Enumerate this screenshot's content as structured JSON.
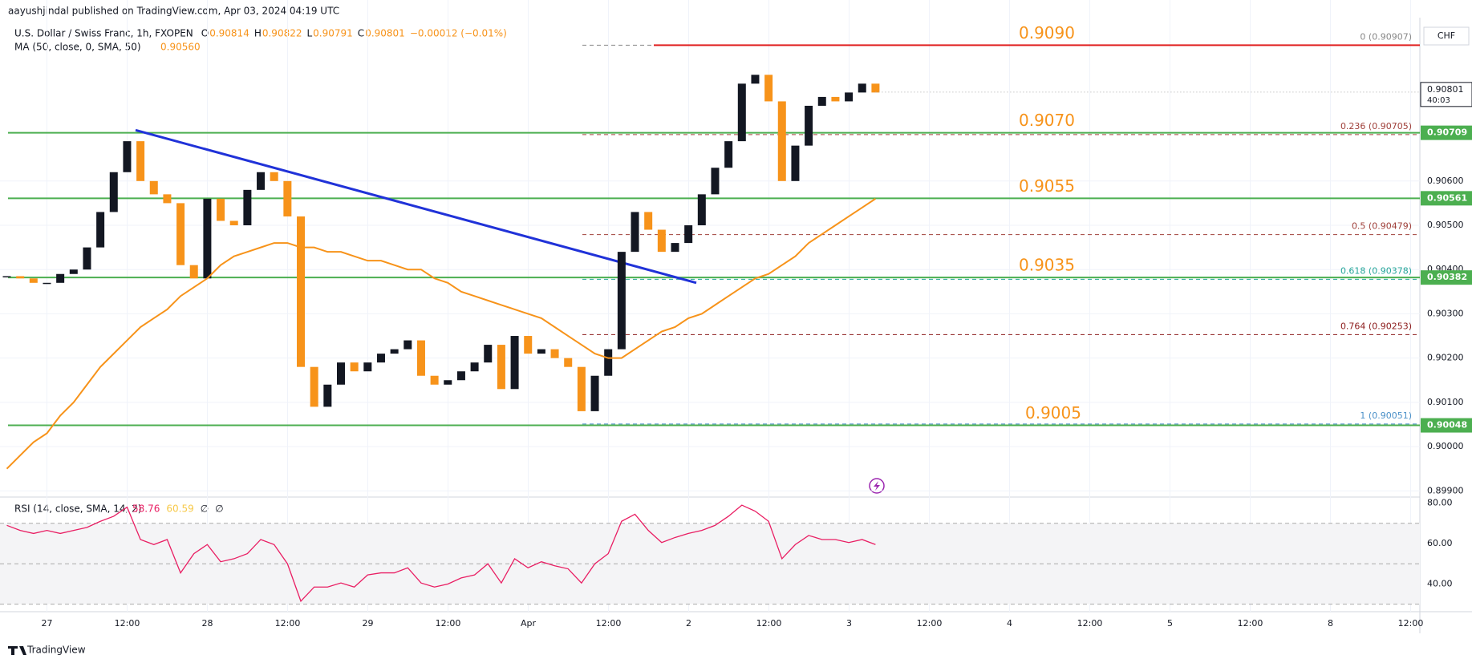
{
  "header": {
    "publisher": "aayushjindal published on TradingView.com, Apr 03, 2024 04:19 UTC",
    "symbol": "U.S. Dollar / Swiss Franc, 1h, FXOPEN",
    "ohlc": [
      {
        "label": "O",
        "value": "0.90814"
      },
      {
        "label": "H",
        "value": "0.90822"
      },
      {
        "label": "L",
        "value": "0.90791"
      },
      {
        "label": "C",
        "value": "0.90801"
      }
    ],
    "change": "−0.00012 (−0.01%)",
    "ma_label": "MA (50, close, 0, SMA, 50)",
    "ma_value": "0.90560",
    "rsi_label": "RSI (14, close, SMA, 14, 2)",
    "rsi_values": [
      "58.76",
      "60.59",
      "∅",
      "∅"
    ],
    "currency": "CHF",
    "logo": "TradingView"
  },
  "chart_data": {
    "type": "candlestick",
    "ylim": [
      0.89886,
      0.91009
    ],
    "yticks": [
      {
        "value": 0.906,
        "label": "0.90600"
      },
      {
        "value": 0.905,
        "label": "0.90500"
      },
      {
        "value": 0.904,
        "label": "0.90400"
      },
      {
        "value": 0.903,
        "label": "0.90300"
      },
      {
        "value": 0.902,
        "label": "0.90200"
      },
      {
        "value": 0.901,
        "label": "0.90100"
      },
      {
        "value": 0.9,
        "label": "0.90000"
      },
      {
        "value": 0.899,
        "label": "0.89900"
      }
    ],
    "time_axis": [
      "27",
      "12:00",
      "28",
      "12:00",
      "29",
      "12:00",
      "Apr",
      "12:00",
      "2",
      "12:00",
      "3",
      "12:00",
      "4",
      "12:00",
      "5",
      "12:00",
      "8",
      "12:00"
    ],
    "closes": [
      0.90385,
      0.9038,
      0.9037,
      0.9037,
      0.9039,
      0.904,
      0.9045,
      0.9053,
      0.9062,
      0.9069,
      0.906,
      0.9057,
      0.9055,
      0.9041,
      0.9038,
      0.9056,
      0.9051,
      0.905,
      0.9058,
      0.9062,
      0.906,
      0.9052,
      0.9018,
      0.9009,
      0.9014,
      0.9019,
      0.9017,
      0.9019,
      0.9021,
      0.9022,
      0.9024,
      0.9016,
      0.9014,
      0.9015,
      0.9017,
      0.9019,
      0.9023,
      0.9013,
      0.9025,
      0.9021,
      0.9022,
      0.902,
      0.9018,
      0.9008,
      0.9016,
      0.9022,
      0.9044,
      0.9053,
      0.9049,
      0.9044,
      0.9046,
      0.905,
      0.9057,
      0.9063,
      0.9069,
      0.9082,
      0.9084,
      0.9078,
      0.906,
      0.9068,
      0.9077,
      0.9079,
      0.9078,
      0.908,
      0.9082,
      0.908
    ],
    "up_color": "#131722",
    "down_color": "#f7931a",
    "ma": {
      "color": "#f7931a",
      "values": [
        0.8995,
        0.8998,
        0.9001,
        0.9003,
        0.9007,
        0.901,
        0.9014,
        0.9018,
        0.9021,
        0.9024,
        0.9027,
        0.9029,
        0.9031,
        0.9034,
        0.9036,
        0.9038,
        0.9041,
        0.9043,
        0.9044,
        0.9045,
        0.9046,
        0.9046,
        0.9045,
        0.9045,
        0.9044,
        0.9044,
        0.9043,
        0.9042,
        0.9042,
        0.9041,
        0.904,
        0.904,
        0.9038,
        0.9037,
        0.9035,
        0.9034,
        0.9033,
        0.9032,
        0.9031,
        0.903,
        0.9029,
        0.9027,
        0.9025,
        0.9023,
        0.9021,
        0.902,
        0.902,
        0.9022,
        0.9024,
        0.9026,
        0.9027,
        0.9029,
        0.903,
        0.9032,
        0.9034,
        0.9036,
        0.9038,
        0.9039,
        0.9041,
        0.9043,
        0.9046,
        0.9048,
        0.905,
        0.9052,
        0.9054,
        0.9056
      ]
    },
    "trendline": {
      "color": "#2032d8",
      "values": [
        0.90715,
        0.9037
      ]
    },
    "levels": [
      {
        "label": "0.9090",
        "value": 0.90907,
        "color": "#e02020"
      },
      {
        "label": "0.9070",
        "value": 0.90709,
        "color": "#4caf50",
        "tag": "0.90709"
      },
      {
        "label": "0.9055",
        "value": 0.90561,
        "color": "#4caf50",
        "tag": "0.90561"
      },
      {
        "label": "0.9035",
        "value": 0.90382,
        "color": "#4caf50",
        "tag": "0.90382"
      },
      {
        "label": "0.9005",
        "value": 0.90048,
        "color": "#4caf50",
        "tag": "0.90048"
      }
    ],
    "fib": [
      {
        "label": "0 (0.90907)",
        "value": 0.90907,
        "color": "#888888"
      },
      {
        "label": "0.236 (0.90705)",
        "value": 0.90705,
        "color": "#a0403a"
      },
      {
        "label": "0.5 (0.90479)",
        "value": 0.90479,
        "color": "#a0403a"
      },
      {
        "label": "0.618 (0.90378)",
        "value": 0.90378,
        "color": "#26a69a"
      },
      {
        "label": "0.764 (0.90253)",
        "value": 0.90253,
        "color": "#8b1a1a"
      },
      {
        "label": "1 (0.90051)",
        "value": 0.90051,
        "color": "#4a90c8"
      }
    ],
    "last": {
      "value": 0.90801,
      "label": "0.90801",
      "timer": "40:03"
    },
    "rsi": {
      "color": "#7e57c2",
      "ylim": [
        26.3,
        83
      ],
      "yticks": [
        {
          "value": 80,
          "label": "80.00"
        },
        {
          "value": 60,
          "label": "60.00"
        },
        {
          "value": 40,
          "label": "40.00"
        }
      ],
      "bands": [
        70,
        50,
        30
      ],
      "values": [
        69,
        66.5,
        65,
        66.5,
        65,
        66.5,
        68,
        71,
        73.5,
        78,
        62,
        59.5,
        62,
        45.5,
        55,
        59.5,
        51,
        52.5,
        55,
        62,
        59.5,
        50,
        31.5,
        38.5,
        38.5,
        40.5,
        38.5,
        44.5,
        45.5,
        45.5,
        48,
        40.5,
        38.5,
        40,
        43,
        44.5,
        50,
        40.5,
        52.5,
        48,
        51,
        49,
        47.5,
        40.5,
        50,
        55,
        71,
        74.5,
        66.5,
        60.5,
        63,
        65,
        66.5,
        69,
        73.5,
        79,
        76,
        71,
        52.5,
        59.5,
        64,
        62,
        62,
        60.5,
        62,
        59.5
      ]
    }
  }
}
